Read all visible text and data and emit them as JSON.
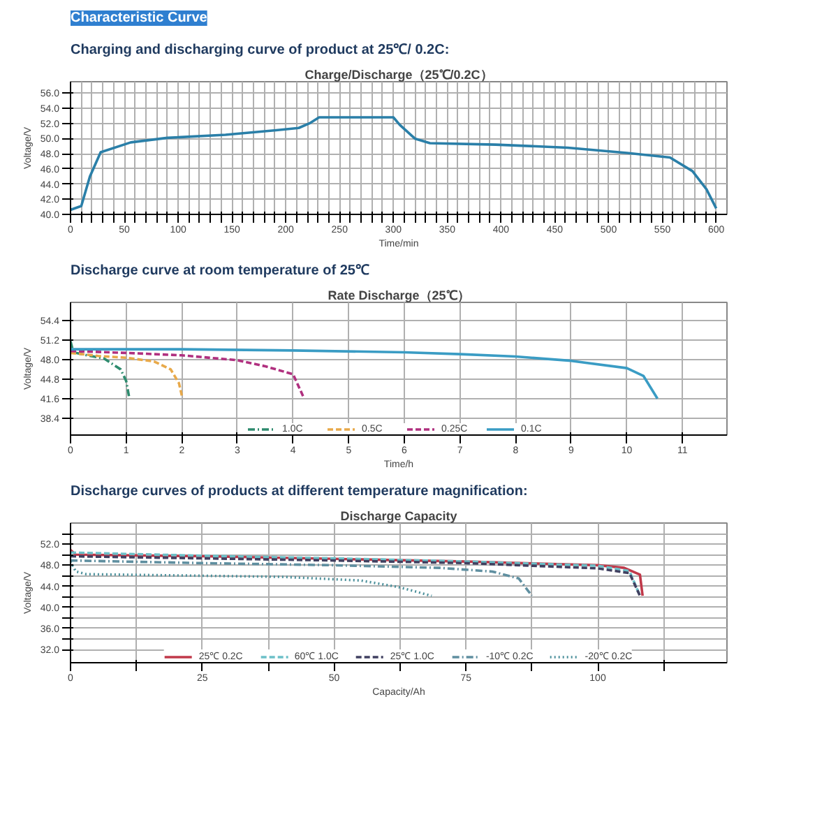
{
  "chart_data": [
    {
      "type": "line",
      "annotations": [
        "Characteristic Curve"
      ],
      "subtitle": "Charging and discharging curve of product at 25℃/ 0.2C:",
      "title": "Charge/Discharge（25℃/0.2C）",
      "xlabel": "Time/min",
      "ylabel": "Voltage/V",
      "xlim": [
        0,
        610
      ],
      "ylim": [
        40,
        57.5
      ],
      "xticks": [
        0,
        {
          "value": 10,
          "label": null
        },
        {
          "value": 20,
          "label": null
        },
        {
          "value": 30,
          "label": null
        },
        {
          "value": 40,
          "label": null
        },
        50,
        {
          "value": 60,
          "label": null
        },
        {
          "value": 70,
          "label": null
        },
        {
          "value": 80,
          "label": null
        },
        {
          "value": 90,
          "label": null
        },
        100,
        {
          "value": 110,
          "label": null
        },
        {
          "value": 120,
          "label": null
        },
        {
          "value": 130,
          "label": null
        },
        {
          "value": 140,
          "label": null
        },
        150,
        {
          "value": 160,
          "label": null
        },
        {
          "value": 170,
          "label": null
        },
        {
          "value": 180,
          "label": null
        },
        {
          "value": 190,
          "label": null
        },
        200,
        {
          "value": 210,
          "label": null
        },
        {
          "value": 220,
          "label": null
        },
        {
          "value": 230,
          "label": null
        },
        {
          "value": 240,
          "label": null
        },
        250,
        {
          "value": 260,
          "label": null
        },
        {
          "value": 270,
          "label": null
        },
        {
          "value": 280,
          "label": null
        },
        {
          "value": 290,
          "label": null
        },
        300,
        {
          "value": 310,
          "label": null
        },
        {
          "value": 320,
          "label": null
        },
        {
          "value": 330,
          "label": null
        },
        {
          "value": 340,
          "label": null
        },
        350,
        {
          "value": 360,
          "label": null
        },
        {
          "value": 370,
          "label": null
        },
        {
          "value": 380,
          "label": null
        },
        {
          "value": 390,
          "label": null
        },
        400,
        {
          "value": 410,
          "label": null
        },
        {
          "value": 420,
          "label": null
        },
        {
          "value": 430,
          "label": null
        },
        {
          "value": 440,
          "label": null
        },
        450,
        {
          "value": 460,
          "label": null
        },
        {
          "value": 470,
          "label": null
        },
        {
          "value": 480,
          "label": null
        },
        {
          "value": 490,
          "label": null
        },
        500,
        {
          "value": 510,
          "label": null
        },
        {
          "value": 520,
          "label": null
        },
        {
          "value": 530,
          "label": null
        },
        {
          "value": 540,
          "label": null
        },
        550,
        {
          "value": 560,
          "label": null
        },
        {
          "value": 570,
          "label": null
        },
        {
          "value": 580,
          "label": null
        },
        {
          "value": 590,
          "label": null
        },
        600
      ],
      "yticks": [
        {
          "value": 40,
          "label": "40.0"
        },
        {
          "value": 42,
          "label": "42.0"
        },
        {
          "value": 44,
          "label": "44.0"
        },
        {
          "value": 46,
          "label": "46.0"
        },
        {
          "value": 48,
          "label": "48.0"
        },
        {
          "value": 50,
          "label": "50.0"
        },
        {
          "value": 52,
          "label": "52.0"
        },
        {
          "value": 54,
          "label": "54.0"
        },
        {
          "value": 56,
          "label": "56.0"
        }
      ],
      "grid": true,
      "legend": false,
      "marker": "none",
      "line_style": "solid",
      "series": [
        {
          "color": "#2a7fa8",
          "x": [
            0,
            10,
            18,
            28,
            56,
            90,
            144,
            191,
            212,
            222,
            231,
            300,
            306,
            320,
            334,
            395,
            462,
            517,
            557,
            578,
            591,
            600
          ],
          "values": [
            40.6,
            41.1,
            45.0,
            48.2,
            49.5,
            50.1,
            50.5,
            51.1,
            51.4,
            52.0,
            52.8,
            52.8,
            51.8,
            50.0,
            49.4,
            49.2,
            48.8,
            48.1,
            47.5,
            45.7,
            43.3,
            40.8
          ]
        }
      ]
    },
    {
      "type": "line",
      "subtitle": "Discharge curve at room temperature of 25℃",
      "title": "Rate Discharge（25℃）",
      "xlabel": "Time/h",
      "ylabel": "Voltage/V",
      "xlim": [
        0,
        11.8
      ],
      "ylim": [
        35.6,
        57.4
      ],
      "xticks": [
        0,
        1,
        2,
        3,
        4,
        5,
        6,
        7,
        8,
        9,
        10,
        11
      ],
      "yticks": [
        38.4,
        41.6,
        44.8,
        {
          "value": 48,
          "label": "48.0"
        },
        51.2,
        54.4
      ],
      "grid": true,
      "legend": "bottom",
      "marker": "none",
      "series": [
        {
          "name": "1.0C",
          "color": "#2e8b6e",
          "line_style": "dashdot",
          "x": [
            0,
            0.05,
            0.3,
            0.6,
            0.9,
            1.0,
            1.05
          ],
          "values": [
            51.0,
            49.2,
            48.7,
            48.2,
            46.4,
            44.5,
            42.0
          ]
        },
        {
          "name": "0.5C",
          "color": "#e8a94a",
          "line_style": "dashed",
          "x": [
            0,
            0.5,
            1,
            1.5,
            1.8,
            1.95,
            2.0
          ],
          "values": [
            49.1,
            48.6,
            48.3,
            47.7,
            46.4,
            44.1,
            42.1
          ]
        },
        {
          "name": "0.25C",
          "color": "#b0307f",
          "line_style": "dashed",
          "x": [
            0,
            1,
            2,
            3,
            3.5,
            4,
            4.2
          ],
          "values": [
            49.4,
            49.1,
            48.7,
            47.9,
            46.9,
            45.6,
            41.6
          ]
        },
        {
          "name": "0.1C",
          "color": "#3a9cc4",
          "line_style": "solid",
          "x": [
            0,
            2,
            4,
            6,
            7,
            8,
            9,
            10,
            10.3,
            10.55
          ],
          "values": [
            49.7,
            49.7,
            49.5,
            49.2,
            48.9,
            48.5,
            47.8,
            46.6,
            45.3,
            41.6
          ]
        }
      ]
    },
    {
      "type": "line",
      "subtitle": "Discharge curves of products at different temperature magnification:",
      "title": "Discharge Capacity",
      "xlabel": "Capacity/Ah",
      "ylabel": "Voltage/V",
      "xlim": [
        0,
        124.5
      ],
      "ylim": [
        29.5,
        56
      ],
      "xticks": [
        0,
        {
          "value": 12.5,
          "label": null
        },
        25,
        {
          "value": 37.5,
          "label": null
        },
        50,
        {
          "value": 62.5,
          "label": null
        },
        75,
        {
          "value": 87.5,
          "label": null
        },
        100,
        {
          "value": 112.5,
          "label": null
        }
      ],
      "yticks": [
        {
          "value": 32,
          "label": "32.0"
        },
        {
          "value": 34,
          "label": null
        },
        {
          "value": 36,
          "label": "36.0"
        },
        {
          "value": 38,
          "label": null
        },
        {
          "value": 40,
          "label": "40.0"
        },
        {
          "value": 42,
          "label": null
        },
        {
          "value": 44,
          "label": "44.0"
        },
        {
          "value": 46,
          "label": null
        },
        {
          "value": 48,
          "label": "48.0"
        },
        {
          "value": 50,
          "label": null
        },
        {
          "value": 52,
          "label": "52.0"
        },
        {
          "value": 54,
          "label": null
        }
      ],
      "grid": true,
      "legend": "bottom",
      "marker": "none",
      "series": [
        {
          "name": "25℃ 0.2C",
          "color": "#c0394a",
          "line_style": "solid",
          "x": [
            0,
            1,
            25,
            50,
            75,
            100,
            105,
            108,
            108.5
          ],
          "values": [
            50.9,
            50.0,
            49.7,
            49.2,
            48.7,
            48.0,
            47.5,
            46.2,
            42.2
          ]
        },
        {
          "name": "60℃ 1.0C",
          "color": "#6cc0c8",
          "line_style": "dashed",
          "x": [
            0,
            25,
            50,
            75,
            100,
            106,
            108
          ],
          "values": [
            50.4,
            49.8,
            49.3,
            48.7,
            47.9,
            46.9,
            42.2
          ]
        },
        {
          "name": "25℃ 1.0C",
          "color": "#404060",
          "line_style": "dashed",
          "x": [
            0,
            25,
            50,
            75,
            100,
            106,
            108
          ],
          "values": [
            49.7,
            49.3,
            48.9,
            48.4,
            47.4,
            46.5,
            42.2
          ]
        },
        {
          "name": "-10℃ 0.2C",
          "color": "#5f8fa0",
          "line_style": "dashdot",
          "x": [
            0,
            25,
            50,
            70,
            80,
            85,
            87.5
          ],
          "values": [
            48.9,
            48.4,
            48.0,
            47.5,
            46.8,
            45.5,
            42.2
          ]
        },
        {
          "name": "-20℃ 0.2C",
          "color": "#4a8f9a",
          "line_style": "dotted",
          "x": [
            0,
            1,
            3,
            25,
            40,
            55,
            62,
            68.5
          ],
          "values": [
            48.7,
            46.8,
            46.3,
            46.0,
            45.8,
            45.1,
            43.9,
            42.2
          ]
        }
      ]
    }
  ]
}
